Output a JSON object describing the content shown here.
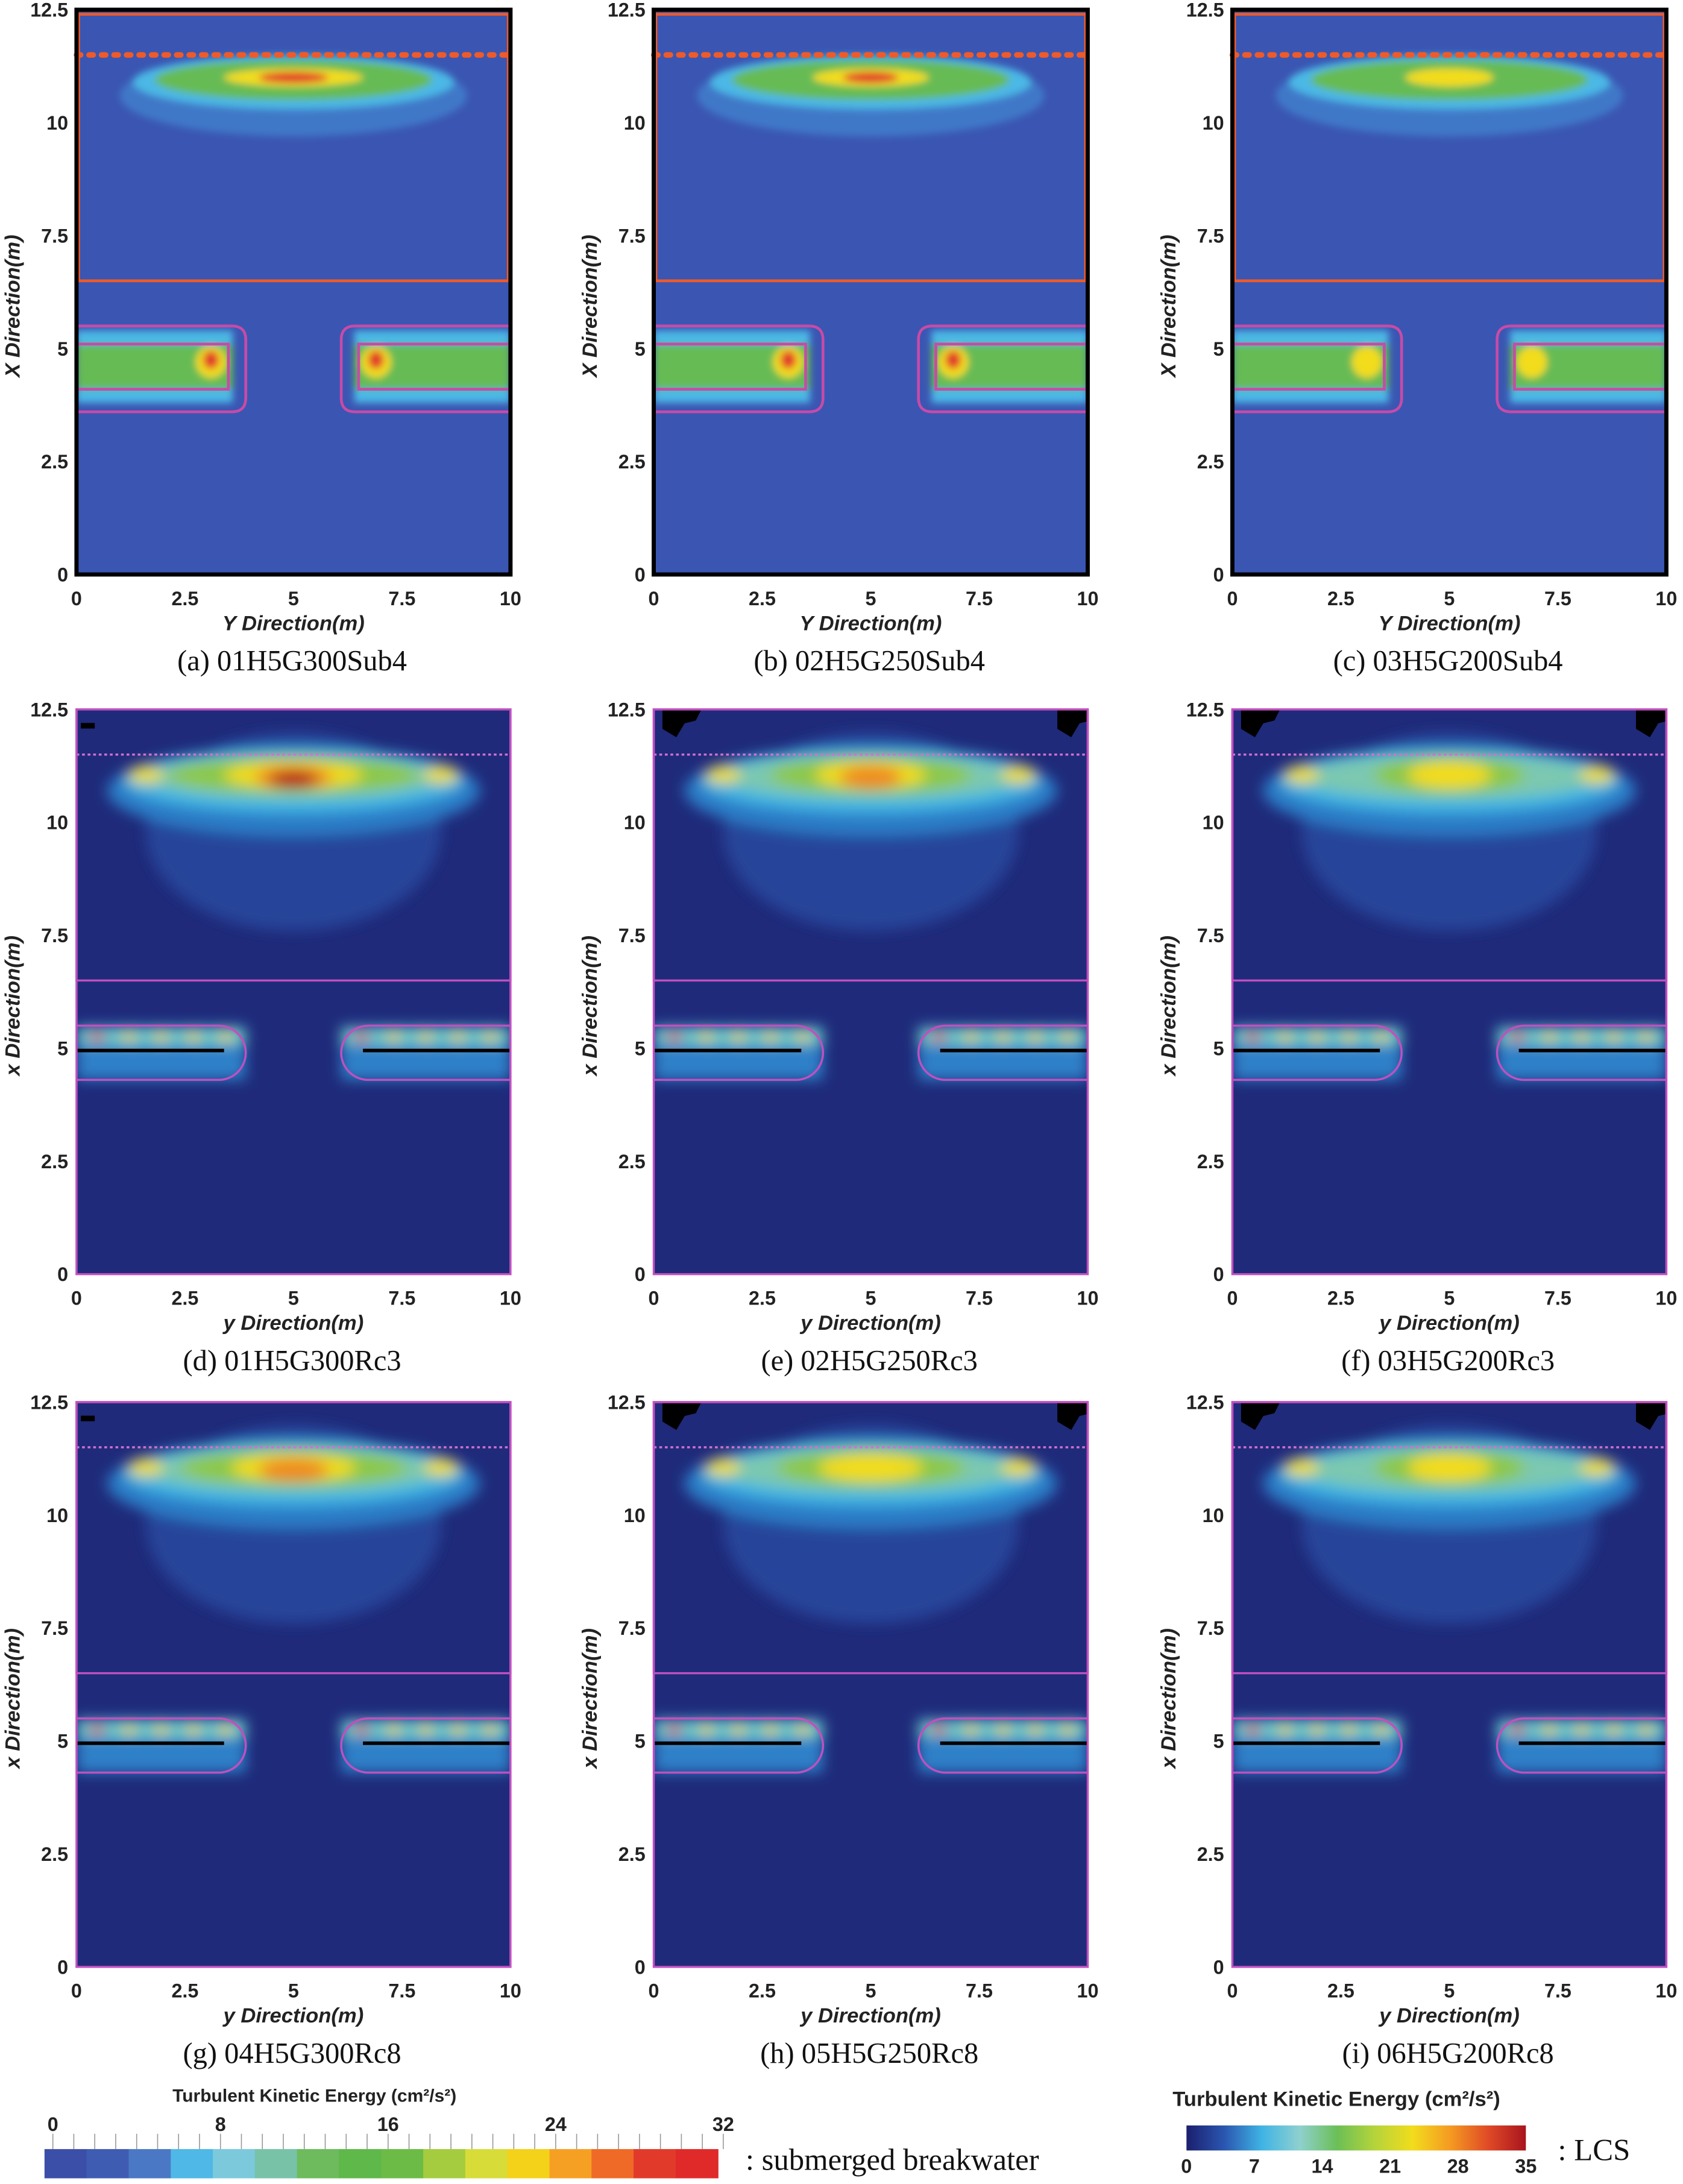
{
  "chart_data": [
    {
      "type": "heatmap",
      "caption": "(a)  01H5G300Sub4",
      "xlabel": "Y Direction(m)",
      "ylabel": "X Direction(m)",
      "xlim": [
        0,
        10
      ],
      "ylim": [
        0,
        12.5
      ],
      "xticks": [
        "0",
        "2.5",
        "5",
        "7.5",
        "10"
      ],
      "yticks": [
        "0",
        "2.5",
        "5",
        "7.5",
        "10",
        "12.5"
      ],
      "structure": "submerged breakwater",
      "colorbar": "submerged"
    },
    {
      "type": "heatmap",
      "caption": "(b)  02H5G250Sub4",
      "xlabel": "Y Direction(m)",
      "ylabel": "X Direction(m)",
      "xlim": [
        0,
        10
      ],
      "ylim": [
        0,
        12.5
      ],
      "xticks": [
        "0",
        "2.5",
        "5",
        "7.5",
        "10"
      ],
      "yticks": [
        "0",
        "2.5",
        "5",
        "7.5",
        "10",
        "12.5"
      ],
      "structure": "submerged breakwater",
      "colorbar": "submerged"
    },
    {
      "type": "heatmap",
      "caption": "(c)  03H5G200Sub4",
      "xlabel": "Y Direction(m)",
      "ylabel": "X Direction(m)",
      "xlim": [
        0,
        10
      ],
      "ylim": [
        0,
        12.5
      ],
      "xticks": [
        "0",
        "2.5",
        "5",
        "7.5",
        "10"
      ],
      "yticks": [
        "0",
        "2.5",
        "5",
        "7.5",
        "10",
        "12.5"
      ],
      "structure": "submerged breakwater",
      "colorbar": "submerged"
    },
    {
      "type": "heatmap",
      "caption": "(d)  01H5G300Rc3",
      "xlabel": "y Direction(m)",
      "ylabel": "x Direction(m)",
      "xlim": [
        0,
        10
      ],
      "ylim": [
        0,
        12.5
      ],
      "xticks": [
        "0",
        "2.5",
        "5",
        "7.5",
        "10"
      ],
      "yticks": [
        "0",
        "2.5",
        "5",
        "7.5",
        "10",
        "12.5"
      ],
      "structure": "LCS",
      "colorbar": "LCS"
    },
    {
      "type": "heatmap",
      "caption": "(e)  02H5G250Rc3",
      "xlabel": "y Direction(m)",
      "ylabel": "x Direction(m)",
      "xlim": [
        0,
        10
      ],
      "ylim": [
        0,
        12.5
      ],
      "xticks": [
        "0",
        "2.5",
        "5",
        "7.5",
        "10"
      ],
      "yticks": [
        "0",
        "2.5",
        "5",
        "7.5",
        "10",
        "12.5"
      ],
      "structure": "LCS",
      "colorbar": "LCS"
    },
    {
      "type": "heatmap",
      "caption": "(f)  03H5G200Rc3",
      "xlabel": "y Direction(m)",
      "ylabel": "x Direction(m)",
      "xlim": [
        0,
        10
      ],
      "ylim": [
        0,
        12.5
      ],
      "xticks": [
        "0",
        "2.5",
        "5",
        "7.5",
        "10"
      ],
      "yticks": [
        "0",
        "2.5",
        "5",
        "7.5",
        "10",
        "12.5"
      ],
      "structure": "LCS",
      "colorbar": "LCS"
    },
    {
      "type": "heatmap",
      "caption": "(g)  04H5G300Rc8",
      "xlabel": "y Direction(m)",
      "ylabel": "x Direction(m)",
      "xlim": [
        0,
        10
      ],
      "ylim": [
        0,
        12.5
      ],
      "xticks": [
        "0",
        "2.5",
        "5",
        "7.5",
        "10"
      ],
      "yticks": [
        "0",
        "2.5",
        "5",
        "7.5",
        "10",
        "12.5"
      ],
      "structure": "LCS",
      "colorbar": "LCS"
    },
    {
      "type": "heatmap",
      "caption": "(h)  05H5G250Rc8",
      "xlabel": "y Direction(m)",
      "ylabel": "x Direction(m)",
      "xlim": [
        0,
        10
      ],
      "ylim": [
        0,
        12.5
      ],
      "xticks": [
        "0",
        "2.5",
        "5",
        "7.5",
        "10"
      ],
      "yticks": [
        "0",
        "2.5",
        "5",
        "7.5",
        "10",
        "12.5"
      ],
      "structure": "LCS",
      "colorbar": "LCS"
    },
    {
      "type": "heatmap",
      "caption": "(i)  06H5G200Rc8",
      "xlabel": "y Direction(m)",
      "ylabel": "x Direction(m)",
      "xlim": [
        0,
        10
      ],
      "ylim": [
        0,
        12.5
      ],
      "xticks": [
        "0",
        "2.5",
        "5",
        "7.5",
        "10"
      ],
      "yticks": [
        "0",
        "2.5",
        "5",
        "7.5",
        "10",
        "12.5"
      ],
      "structure": "LCS",
      "colorbar": "LCS"
    }
  ],
  "legends": {
    "submerged": {
      "title": "Turbulent Kinetic Energy (cm²/s²)",
      "ticks": [
        "0",
        "8",
        "16",
        "24",
        "32"
      ],
      "range": [
        0,
        32
      ],
      "note": ": submerged  breakwater",
      "colors": [
        "#3b4fa8",
        "#3f5cb3",
        "#4a78c4",
        "#4fb8e6",
        "#7cc9dc",
        "#78c2a8",
        "#6dbb5c",
        "#5fb84a",
        "#6cbb46",
        "#a4cc3e",
        "#d8dc38",
        "#f4d21a",
        "#f6a023",
        "#ef6a27",
        "#e23a2a",
        "#e02a2a"
      ]
    },
    "lcs": {
      "title": "Turbulent Kinetic Energy (cm²/s²)",
      "ticks": [
        "0",
        "7",
        "14",
        "21",
        "28",
        "35"
      ],
      "range": [
        0,
        35
      ],
      "note": ": LCS",
      "colors": [
        "#1b1f6e",
        "#2a56b0",
        "#3fb4e4",
        "#8fd0cf",
        "#6cbf56",
        "#b5d43a",
        "#f2dc1c",
        "#f49a22",
        "#e04a26",
        "#a8141e"
      ]
    }
  }
}
